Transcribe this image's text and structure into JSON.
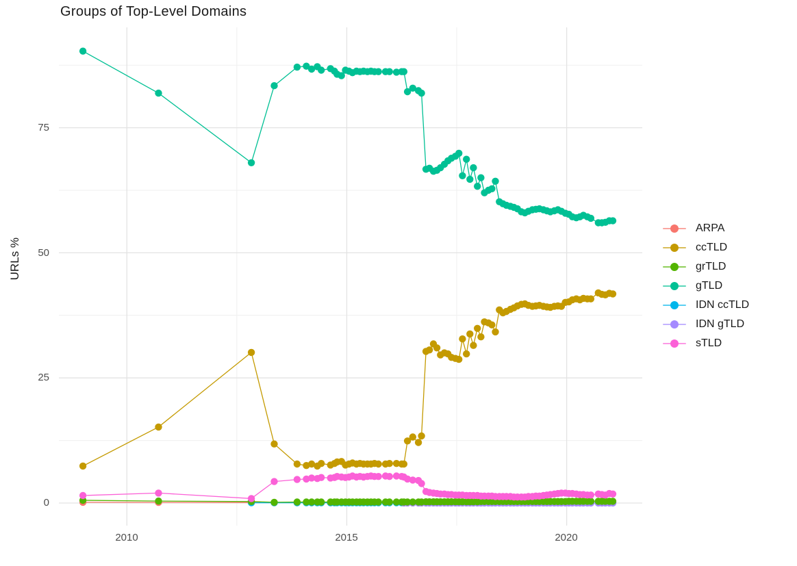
{
  "chart_data": {
    "type": "line",
    "title": "Groups of Top-Level Domains",
    "ylabel": "URLs %",
    "x_axis": {
      "tick_labels": [
        "2010",
        "2015",
        "2020"
      ],
      "tick_values": [
        2010,
        2015,
        2020
      ],
      "minor_values": [
        2012.5,
        2017.5
      ],
      "range": [
        2008.45,
        2021.7
      ]
    },
    "y_axis": {
      "tick_labels": [
        "0",
        "25",
        "50",
        "75"
      ],
      "tick_values": [
        0,
        25,
        50,
        75
      ],
      "minor_values": [
        12.5,
        37.5,
        62.5,
        87.5
      ],
      "range": [
        -2,
        95
      ]
    },
    "grid": {
      "major_color": "#e3e3e3",
      "minor_color": "#efefef"
    },
    "legend_position": "right",
    "x_common": [
      2009.0,
      2010.72,
      2012.83,
      2013.35,
      2013.87,
      2014.08,
      2014.2,
      2014.33,
      2014.42,
      2014.63,
      2014.72,
      2014.78,
      2014.88,
      2014.97,
      2015.05,
      2015.13,
      2015.22,
      2015.3,
      2015.38,
      2015.47,
      2015.55,
      2015.63,
      2015.72,
      2015.88,
      2015.97,
      2016.13,
      2016.25,
      2016.3,
      2016.38,
      2016.5,
      2016.63,
      2016.7,
      2016.8,
      2016.88,
      2016.97,
      2017.05,
      2017.13,
      2017.22,
      2017.3,
      2017.38,
      2017.47,
      2017.55,
      2017.63,
      2017.72,
      2017.8,
      2017.88,
      2017.97,
      2018.05,
      2018.13,
      2018.22,
      2018.3,
      2018.38,
      2018.47,
      2018.55,
      2018.63,
      2018.72,
      2018.8,
      2018.88,
      2018.97,
      2019.05,
      2019.13,
      2019.22,
      2019.3,
      2019.38,
      2019.47,
      2019.55,
      2019.63,
      2019.72,
      2019.8,
      2019.88,
      2019.97,
      2020.05,
      2020.13,
      2020.22,
      2020.3,
      2020.38,
      2020.47,
      2020.55,
      2020.72,
      2020.8,
      2020.88,
      2020.97,
      2021.05
    ],
    "draw_order": [
      "ARPA",
      "IDN ccTLD",
      "IDN gTLD",
      "ccTLD",
      "gTLD",
      "grTLD",
      "sTLD"
    ],
    "series": [
      {
        "name": "ARPA",
        "color": "#F8766D",
        "x": [
          2009.0,
          2010.72,
          2012.83,
          2013.35,
          2013.87,
          2014.2,
          2014.63
        ],
        "y": [
          0.15,
          0.12,
          0.1,
          0.08,
          0.08,
          0.07,
          0.07
        ]
      },
      {
        "name": "ccTLD",
        "color": "#C49A00",
        "x": "common",
        "y": [
          7.4,
          15.2,
          30.1,
          11.8,
          7.8,
          7.5,
          7.8,
          7.4,
          7.9,
          7.6,
          7.9,
          8.2,
          8.3,
          7.6,
          7.8,
          8.0,
          7.8,
          7.9,
          7.8,
          7.8,
          7.8,
          7.9,
          7.8,
          7.8,
          7.9,
          7.9,
          7.8,
          7.8,
          12.4,
          13.2,
          12.1,
          13.4,
          30.3,
          30.6,
          31.8,
          31.0,
          29.6,
          30.0,
          29.8,
          29.1,
          28.9,
          28.7,
          32.8,
          29.8,
          33.8,
          31.5,
          34.9,
          33.2,
          36.2,
          36.0,
          35.6,
          34.2,
          38.6,
          38.0,
          38.3,
          38.7,
          39.0,
          39.4,
          39.7,
          39.8,
          39.5,
          39.3,
          39.4,
          39.5,
          39.3,
          39.2,
          39.1,
          39.3,
          39.4,
          39.3,
          40.1,
          40.2,
          40.6,
          40.8,
          40.6,
          40.9,
          40.8,
          40.8,
          42.0,
          41.7,
          41.6,
          41.9,
          41.8
        ]
      },
      {
        "name": "grTLD",
        "color": "#53B400",
        "x": "common",
        "y": [
          0.55,
          0.4,
          0.3,
          0.15,
          0.2,
          0.2,
          0.2,
          0.2,
          0.2,
          0.2,
          0.2,
          0.2,
          0.2,
          0.2,
          0.2,
          0.2,
          0.2,
          0.2,
          0.2,
          0.2,
          0.2,
          0.2,
          0.2,
          0.2,
          0.2,
          0.2,
          0.2,
          0.2,
          0.2,
          0.2,
          0.2,
          0.2,
          0.25,
          0.25,
          0.25,
          0.25,
          0.25,
          0.25,
          0.25,
          0.25,
          0.25,
          0.25,
          0.25,
          0.25,
          0.25,
          0.25,
          0.25,
          0.3,
          0.3,
          0.3,
          0.3,
          0.3,
          0.3,
          0.3,
          0.3,
          0.3,
          0.3,
          0.3,
          0.3,
          0.3,
          0.3,
          0.3,
          0.3,
          0.3,
          0.3,
          0.3,
          0.3,
          0.3,
          0.3,
          0.3,
          0.3,
          0.35,
          0.35,
          0.35,
          0.35,
          0.35,
          0.35,
          0.35,
          0.35,
          0.35,
          0.35,
          0.35,
          0.35
        ]
      },
      {
        "name": "gTLD",
        "color": "#00C094",
        "x": "common",
        "y": [
          90.3,
          81.9,
          68.0,
          83.4,
          87.1,
          87.3,
          86.7,
          87.2,
          86.5,
          86.8,
          86.3,
          85.7,
          85.4,
          86.5,
          86.3,
          86.0,
          86.3,
          86.2,
          86.3,
          86.2,
          86.3,
          86.2,
          86.2,
          86.2,
          86.2,
          86.1,
          86.2,
          86.2,
          82.2,
          82.9,
          82.4,
          81.9,
          66.7,
          66.9,
          66.3,
          66.5,
          67.0,
          67.7,
          68.4,
          68.9,
          69.3,
          69.9,
          65.4,
          68.7,
          64.7,
          67.0,
          63.3,
          65.0,
          62.0,
          62.5,
          62.8,
          64.3,
          60.2,
          59.8,
          59.5,
          59.3,
          59.1,
          58.8,
          58.2,
          58.0,
          58.3,
          58.6,
          58.7,
          58.8,
          58.6,
          58.4,
          58.2,
          58.4,
          58.6,
          58.3,
          57.9,
          57.7,
          57.2,
          57.0,
          57.2,
          57.5,
          57.2,
          56.9,
          56.0,
          56.0,
          56.1,
          56.4,
          56.4
        ]
      },
      {
        "name": "IDN ccTLD",
        "color": "#00B6EB",
        "x": "common@2",
        "y_fill": 0.05
      },
      {
        "name": "IDN gTLD",
        "color": "#A58AFF",
        "x": "common@27",
        "y_fill": 0.02
      },
      {
        "name": "sTLD",
        "color": "#FB61D7",
        "x": "common",
        "y": [
          1.5,
          2.0,
          0.9,
          4.3,
          4.7,
          4.8,
          5.0,
          4.9,
          5.1,
          5.0,
          5.1,
          5.3,
          5.2,
          5.1,
          5.2,
          5.4,
          5.2,
          5.3,
          5.2,
          5.3,
          5.4,
          5.3,
          5.3,
          5.4,
          5.3,
          5.4,
          5.3,
          5.2,
          4.8,
          4.6,
          4.5,
          3.9,
          2.3,
          2.1,
          2.0,
          1.9,
          1.8,
          1.8,
          1.7,
          1.7,
          1.6,
          1.6,
          1.6,
          1.5,
          1.5,
          1.5,
          1.5,
          1.4,
          1.4,
          1.4,
          1.4,
          1.3,
          1.3,
          1.3,
          1.3,
          1.3,
          1.2,
          1.2,
          1.2,
          1.2,
          1.3,
          1.3,
          1.4,
          1.4,
          1.5,
          1.6,
          1.7,
          1.8,
          1.9,
          2.0,
          2.0,
          1.9,
          1.9,
          1.8,
          1.7,
          1.7,
          1.6,
          1.6,
          1.8,
          1.7,
          1.6,
          1.9,
          1.8
        ]
      }
    ]
  }
}
